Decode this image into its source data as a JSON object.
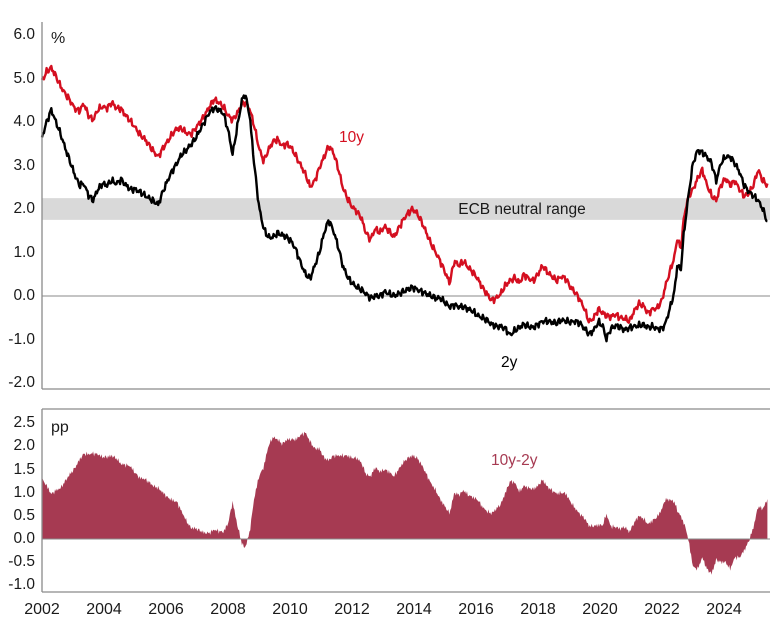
{
  "figure": {
    "background": "#ffffff"
  },
  "top_chart": {
    "unit_label": "%",
    "band_label": "ECB neutral range",
    "label_10y": "10y",
    "label_2y": "2y",
    "y_ticks": [
      {
        "value": 6,
        "label": "6.0"
      },
      {
        "value": 5,
        "label": "5.0"
      },
      {
        "value": 4,
        "label": "4.0"
      },
      {
        "value": 3,
        "label": "3.0"
      },
      {
        "value": 2,
        "label": "2.0"
      },
      {
        "value": 1,
        "label": "1.0"
      },
      {
        "value": 0,
        "label": "0.0"
      },
      {
        "value": -1,
        "label": "-1.0"
      },
      {
        "value": -2,
        "label": "-2.0"
      }
    ],
    "colors": {
      "line_10y": "#d40f20",
      "line_2y": "#000000",
      "band": "#d9d9d9",
      "axis": "#8a8a8a",
      "zero_line": "#8a8a8a"
    }
  },
  "bottom_chart": {
    "unit_label": "pp",
    "series_label": "10y-2y",
    "y_ticks": [
      {
        "value": 2.5,
        "label": "2.5"
      },
      {
        "value": 2.0,
        "label": "2.0"
      },
      {
        "value": 1.5,
        "label": "1.5"
      },
      {
        "value": 1.0,
        "label": "1.0"
      },
      {
        "value": 0.5,
        "label": "0.5"
      },
      {
        "value": 0.0,
        "label": "0.0"
      },
      {
        "value": -0.5,
        "label": "-0.5"
      },
      {
        "value": -1.0,
        "label": "-1.0"
      }
    ],
    "colors": {
      "area": "#a63a52",
      "axis": "#8a8a8a",
      "zero_line": "#8a8a8a"
    }
  },
  "x_axis": {
    "ticks": [
      {
        "value": 2002,
        "label": "2002"
      },
      {
        "value": 2004,
        "label": "2004"
      },
      {
        "value": 2006,
        "label": "2006"
      },
      {
        "value": 2008,
        "label": "2008"
      },
      {
        "value": 2010,
        "label": "2010"
      },
      {
        "value": 2012,
        "label": "2012"
      },
      {
        "value": 2014,
        "label": "2014"
      },
      {
        "value": 2016,
        "label": "2016"
      },
      {
        "value": 2018,
        "label": "2018"
      },
      {
        "value": 2020,
        "label": "2020"
      },
      {
        "value": 2022,
        "label": "2022"
      },
      {
        "value": 2024,
        "label": "2024"
      }
    ]
  },
  "chart_data": [
    {
      "type": "line",
      "ylabel": "%",
      "ylim": [
        -2,
        6
      ],
      "x_range": [
        2002,
        2025.4
      ],
      "grid": false,
      "band": {
        "label": "ECB neutral range",
        "from": 1.75,
        "to": 2.25
      },
      "series": [
        {
          "name": "10y",
          "color": "#d40f20"
        },
        {
          "name": "2y",
          "color": "#000000"
        }
      ],
      "points_format": [
        "year",
        "10y",
        "2y"
      ],
      "points": [
        [
          2002.0,
          4.95,
          3.65
        ],
        [
          2002.15,
          5.15,
          4.0
        ],
        [
          2002.3,
          5.25,
          4.28
        ],
        [
          2002.45,
          5.05,
          4.0
        ],
        [
          2002.6,
          4.82,
          3.72
        ],
        [
          2002.75,
          4.65,
          3.4
        ],
        [
          2002.9,
          4.5,
          3.1
        ],
        [
          2003.05,
          4.32,
          2.8
        ],
        [
          2003.2,
          4.25,
          2.55
        ],
        [
          2003.35,
          4.42,
          2.58
        ],
        [
          2003.5,
          4.15,
          2.32
        ],
        [
          2003.65,
          4.05,
          2.2
        ],
        [
          2003.8,
          4.28,
          2.45
        ],
        [
          2003.95,
          4.35,
          2.58
        ],
        [
          2004.1,
          4.32,
          2.55
        ],
        [
          2004.25,
          4.45,
          2.65
        ],
        [
          2004.4,
          4.32,
          2.58
        ],
        [
          2004.55,
          4.3,
          2.68
        ],
        [
          2004.7,
          4.15,
          2.55
        ],
        [
          2004.85,
          4.02,
          2.45
        ],
        [
          2005.0,
          3.88,
          2.45
        ],
        [
          2005.15,
          3.72,
          2.4
        ],
        [
          2005.3,
          3.62,
          2.32
        ],
        [
          2005.45,
          3.48,
          2.25
        ],
        [
          2005.6,
          3.32,
          2.18
        ],
        [
          2005.75,
          3.2,
          2.1
        ],
        [
          2005.9,
          3.4,
          2.4
        ],
        [
          2006.05,
          3.55,
          2.65
        ],
        [
          2006.2,
          3.72,
          2.88
        ],
        [
          2006.35,
          3.85,
          3.05
        ],
        [
          2006.5,
          3.85,
          3.25
        ],
        [
          2006.65,
          3.75,
          3.35
        ],
        [
          2006.8,
          3.72,
          3.48
        ],
        [
          2006.95,
          3.85,
          3.62
        ],
        [
          2007.1,
          4.0,
          3.82
        ],
        [
          2007.25,
          4.15,
          4.02
        ],
        [
          2007.4,
          4.35,
          4.22
        ],
        [
          2007.55,
          4.52,
          4.32
        ],
        [
          2007.7,
          4.45,
          4.28
        ],
        [
          2007.85,
          4.35,
          4.2
        ],
        [
          2008.0,
          4.15,
          3.82
        ],
        [
          2008.15,
          4.05,
          3.25
        ],
        [
          2008.3,
          4.2,
          3.9
        ],
        [
          2008.45,
          4.4,
          4.5
        ],
        [
          2008.55,
          4.45,
          4.65
        ],
        [
          2008.7,
          4.3,
          4.15
        ],
        [
          2008.85,
          3.9,
          3.0
        ],
        [
          2009.0,
          3.4,
          2.05
        ],
        [
          2009.15,
          3.1,
          1.55
        ],
        [
          2009.3,
          3.35,
          1.35
        ],
        [
          2009.45,
          3.55,
          1.35
        ],
        [
          2009.6,
          3.6,
          1.45
        ],
        [
          2009.75,
          3.45,
          1.4
        ],
        [
          2009.9,
          3.5,
          1.35
        ],
        [
          2010.05,
          3.4,
          1.25
        ],
        [
          2010.2,
          3.2,
          1.05
        ],
        [
          2010.35,
          3.0,
          0.75
        ],
        [
          2010.5,
          2.8,
          0.5
        ],
        [
          2010.65,
          2.5,
          0.4
        ],
        [
          2010.8,
          2.65,
          0.7
        ],
        [
          2010.95,
          2.95,
          1.0
        ],
        [
          2011.1,
          3.2,
          1.45
        ],
        [
          2011.25,
          3.45,
          1.75
        ],
        [
          2011.4,
          3.3,
          1.5
        ],
        [
          2011.55,
          2.95,
          1.15
        ],
        [
          2011.7,
          2.5,
          0.7
        ],
        [
          2011.85,
          2.25,
          0.45
        ],
        [
          2012.0,
          2.05,
          0.3
        ],
        [
          2012.15,
          1.95,
          0.2
        ],
        [
          2012.3,
          1.8,
          0.15
        ],
        [
          2012.45,
          1.45,
          0.05
        ],
        [
          2012.6,
          1.3,
          -0.05
        ],
        [
          2012.75,
          1.55,
          0.0
        ],
        [
          2012.9,
          1.45,
          0.0
        ],
        [
          2013.05,
          1.6,
          0.1
        ],
        [
          2013.2,
          1.5,
          0.05
        ],
        [
          2013.35,
          1.35,
          0.0
        ],
        [
          2013.5,
          1.55,
          0.05
        ],
        [
          2013.65,
          1.75,
          0.1
        ],
        [
          2013.8,
          1.9,
          0.15
        ],
        [
          2013.95,
          2.0,
          0.2
        ],
        [
          2014.1,
          1.9,
          0.15
        ],
        [
          2014.25,
          1.7,
          0.1
        ],
        [
          2014.4,
          1.45,
          0.05
        ],
        [
          2014.55,
          1.2,
          0.0
        ],
        [
          2014.7,
          1.0,
          -0.05
        ],
        [
          2014.85,
          0.8,
          -0.05
        ],
        [
          2015.0,
          0.55,
          -0.15
        ],
        [
          2015.15,
          0.3,
          -0.25
        ],
        [
          2015.3,
          0.8,
          -0.2
        ],
        [
          2015.45,
          0.7,
          -0.25
        ],
        [
          2015.6,
          0.8,
          -0.25
        ],
        [
          2015.75,
          0.65,
          -0.3
        ],
        [
          2015.9,
          0.55,
          -0.35
        ],
        [
          2016.05,
          0.4,
          -0.45
        ],
        [
          2016.2,
          0.2,
          -0.5
        ],
        [
          2016.35,
          0.05,
          -0.55
        ],
        [
          2016.5,
          -0.1,
          -0.65
        ],
        [
          2016.65,
          -0.05,
          -0.7
        ],
        [
          2016.8,
          0.05,
          -0.7
        ],
        [
          2016.95,
          0.25,
          -0.75
        ],
        [
          2017.1,
          0.35,
          -0.9
        ],
        [
          2017.25,
          0.42,
          -0.8
        ],
        [
          2017.4,
          0.3,
          -0.72
        ],
        [
          2017.55,
          0.5,
          -0.65
        ],
        [
          2017.7,
          0.4,
          -0.7
        ],
        [
          2017.85,
          0.35,
          -0.73
        ],
        [
          2018.0,
          0.5,
          -0.65
        ],
        [
          2018.15,
          0.7,
          -0.58
        ],
        [
          2018.3,
          0.55,
          -0.58
        ],
        [
          2018.45,
          0.45,
          -0.6
        ],
        [
          2018.6,
          0.35,
          -0.63
        ],
        [
          2018.75,
          0.45,
          -0.55
        ],
        [
          2018.9,
          0.4,
          -0.58
        ],
        [
          2019.05,
          0.2,
          -0.6
        ],
        [
          2019.2,
          0.08,
          -0.58
        ],
        [
          2019.35,
          -0.08,
          -0.62
        ],
        [
          2019.5,
          -0.3,
          -0.75
        ],
        [
          2019.65,
          -0.6,
          -0.88
        ],
        [
          2019.8,
          -0.5,
          -0.78
        ],
        [
          2019.95,
          -0.3,
          -0.6
        ],
        [
          2020.1,
          -0.4,
          -0.7
        ],
        [
          2020.2,
          -0.45,
          -1.0
        ],
        [
          2020.35,
          -0.48,
          -0.75
        ],
        [
          2020.5,
          -0.42,
          -0.68
        ],
        [
          2020.65,
          -0.5,
          -0.72
        ],
        [
          2020.8,
          -0.52,
          -0.78
        ],
        [
          2020.95,
          -0.58,
          -0.73
        ],
        [
          2021.1,
          -0.35,
          -0.7
        ],
        [
          2021.25,
          -0.18,
          -0.68
        ],
        [
          2021.4,
          -0.22,
          -0.66
        ],
        [
          2021.55,
          -0.4,
          -0.72
        ],
        [
          2021.7,
          -0.3,
          -0.7
        ],
        [
          2021.85,
          -0.28,
          -0.76
        ],
        [
          2022.0,
          -0.1,
          -0.75
        ],
        [
          2022.1,
          0.2,
          -0.65
        ],
        [
          2022.25,
          0.55,
          -0.3
        ],
        [
          2022.4,
          0.9,
          0.1
        ],
        [
          2022.5,
          1.35,
          0.75
        ],
        [
          2022.6,
          1.05,
          0.55
        ],
        [
          2022.7,
          1.75,
          1.4
        ],
        [
          2022.8,
          2.15,
          2.0
        ],
        [
          2022.9,
          2.35,
          2.55
        ],
        [
          2023.0,
          2.45,
          3.05
        ],
        [
          2023.15,
          2.7,
          3.35
        ],
        [
          2023.3,
          2.9,
          3.3
        ],
        [
          2023.45,
          2.55,
          3.2
        ],
        [
          2023.6,
          2.3,
          3.05
        ],
        [
          2023.75,
          2.2,
          2.65
        ],
        [
          2023.9,
          2.55,
          3.05
        ],
        [
          2024.05,
          2.7,
          3.2
        ],
        [
          2024.2,
          2.55,
          3.2
        ],
        [
          2024.35,
          2.65,
          3.05
        ],
        [
          2024.5,
          2.45,
          2.85
        ],
        [
          2024.65,
          2.3,
          2.55
        ],
        [
          2024.8,
          2.35,
          2.4
        ],
        [
          2024.95,
          2.55,
          2.3
        ],
        [
          2025.1,
          2.9,
          2.2
        ],
        [
          2025.25,
          2.65,
          2.0
        ],
        [
          2025.4,
          2.55,
          1.7
        ]
      ]
    },
    {
      "type": "area",
      "name": "10y-2y",
      "ylabel": "pp",
      "ylim": [
        -1,
        2.5
      ],
      "x_range": [
        2002,
        2025.4
      ],
      "color": "#a63a52",
      "derived": "values equal 10y minus 2y from the line chart points above"
    }
  ]
}
